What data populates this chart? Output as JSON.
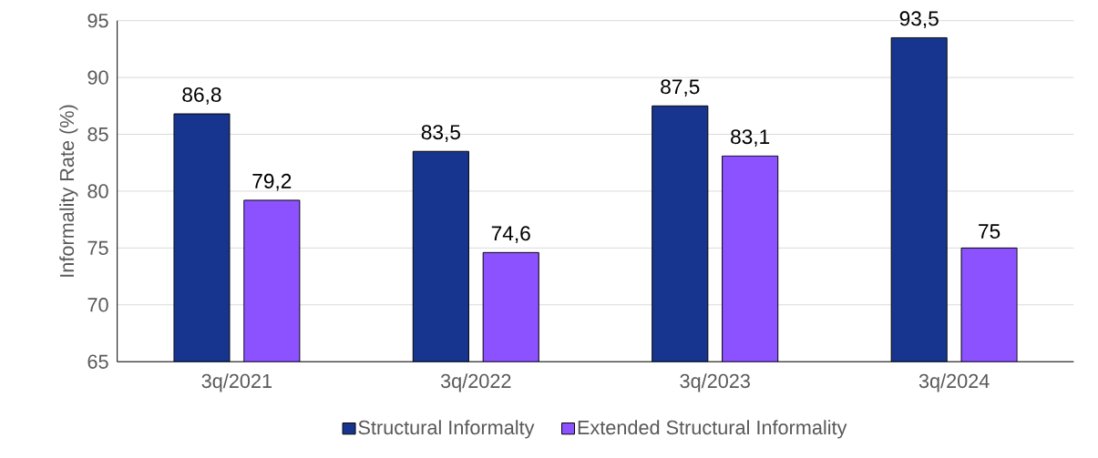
{
  "chart_data": {
    "type": "bar",
    "ylabel": "Informality Rate  (%)",
    "categories": [
      "3q/2021",
      "3q/2022",
      "3q/2023",
      "3q/2024"
    ],
    "series": [
      {
        "name": "Structural Informalty",
        "color": "#17358f",
        "values": [
          86.8,
          83.5,
          87.5,
          93.5
        ],
        "value_labels": [
          "86,8",
          "83,5",
          "87,5",
          "93,5"
        ]
      },
      {
        "name": "Extended Structural Informality",
        "color": "#8c52ff",
        "values": [
          79.2,
          74.6,
          83.1,
          75
        ],
        "value_labels": [
          "79,2",
          "74,6",
          "83,1",
          "75"
        ]
      }
    ],
    "ylim": [
      65,
      95
    ],
    "yticks": [
      65,
      70,
      75,
      80,
      85,
      90,
      95
    ],
    "grid": "y",
    "legend": "bottom"
  }
}
